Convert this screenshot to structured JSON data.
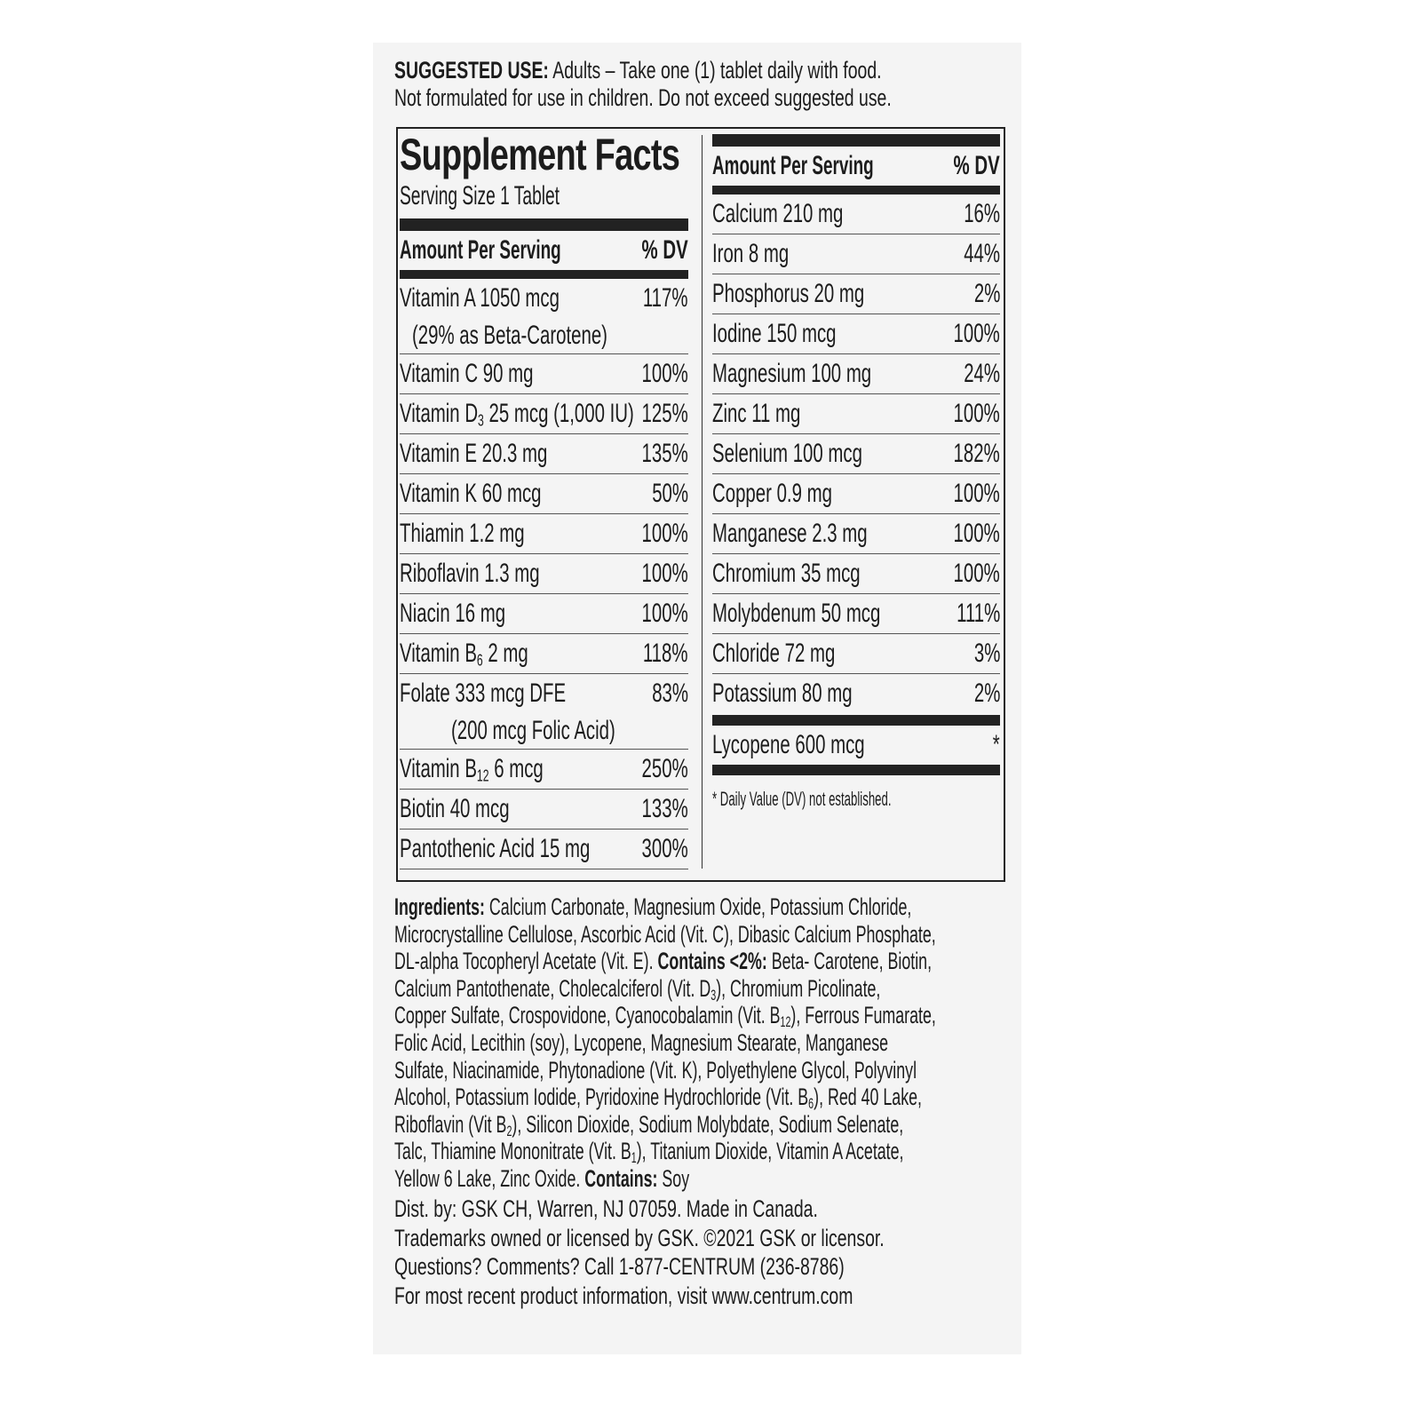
{
  "suggested_use": {
    "label": "SUGGESTED USE:",
    "line1": "Adults – Take one (1) tablet daily with food.",
    "line2": "Not formulated for use in children. Do not exceed suggested use."
  },
  "facts": {
    "title": "Supplement Facts",
    "serving_size": "Serving Size 1 Tablet",
    "header_amount": "Amount Per Serving",
    "header_dv": "% DV",
    "left_rows": [
      {
        "name": "Vitamin A 1050 mcg",
        "sub": "",
        "rest": "",
        "dv": "117%",
        "note": "(29% as Beta-Carotene)"
      },
      {
        "name": "Vitamin C 90 mg",
        "sub": "",
        "rest": "",
        "dv": "100%"
      },
      {
        "name": "Vitamin D",
        "sub": "3",
        "rest": " 25 mcg (1,000 IU)",
        "dv": "125%"
      },
      {
        "name": "Vitamin E 20.3 mg",
        "sub": "",
        "rest": "",
        "dv": "135%"
      },
      {
        "name": "Vitamin K 60 mcg",
        "sub": "",
        "rest": "",
        "dv": "50%"
      },
      {
        "name": "Thiamin 1.2 mg",
        "sub": "",
        "rest": "",
        "dv": "100%"
      },
      {
        "name": "Riboflavin 1.3 mg",
        "sub": "",
        "rest": "",
        "dv": "100%"
      },
      {
        "name": "Niacin 16 mg",
        "sub": "",
        "rest": "",
        "dv": "100%"
      },
      {
        "name": "Vitamin B",
        "sub": "6",
        "rest": " 2 mg",
        "dv": "118%"
      },
      {
        "name": "Folate 333 mcg DFE",
        "sub": "",
        "rest": "",
        "dv": "83%",
        "note": "(200 mcg Folic Acid)"
      },
      {
        "name": "Vitamin B",
        "sub": "12",
        "rest": " 6 mcg",
        "dv": "250%"
      },
      {
        "name": "Biotin 40 mcg",
        "sub": "",
        "rest": "",
        "dv": "133%"
      },
      {
        "name": "Pantothenic Acid 15 mg",
        "sub": "",
        "rest": "",
        "dv": "300%"
      }
    ],
    "right_rows": [
      {
        "name": "Calcium 210 mg",
        "dv": "16%"
      },
      {
        "name": "Iron 8 mg",
        "dv": "44%"
      },
      {
        "name": "Phosphorus 20 mg",
        "dv": "2%"
      },
      {
        "name": "Iodine 150 mcg",
        "dv": "100%"
      },
      {
        "name": "Magnesium 100 mg",
        "dv": "24%"
      },
      {
        "name": "Zinc 11 mg",
        "dv": "100%"
      },
      {
        "name": "Selenium 100 mcg",
        "dv": "182%"
      },
      {
        "name": "Copper 0.9 mg",
        "dv": "100%"
      },
      {
        "name": "Manganese 2.3 mg",
        "dv": "100%"
      },
      {
        "name": "Chromium 35 mcg",
        "dv": "100%"
      },
      {
        "name": "Molybdenum 50 mcg",
        "dv": "111%"
      },
      {
        "name": "Chloride 72 mg",
        "dv": "3%"
      },
      {
        "name": "Potassium 80 mg",
        "dv": "2%"
      }
    ],
    "other": {
      "name": "Lycopene 600 mcg",
      "dv": "*"
    },
    "footnote": "* Daily Value (DV) not established."
  },
  "ingredients": {
    "label": "Ingredients:",
    "l1": " Calcium Carbonate, Magnesium Oxide, Potassium Chloride,",
    "l2": "Microcrystalline Cellulose, Ascorbic Acid (Vit. C), Dibasic Calcium Phosphate,",
    "l3a": "DL-alpha Tocopheryl Acetate (Vit. E). ",
    "contains_label": "Contains <2%:",
    "l3b": " Beta- Carotene, Biotin,",
    "l4a": "Calcium Pantothenate, Cholecalciferol (Vit. D",
    "l4s": "3",
    "l4b": "), Chromium Picolinate,",
    "l5a": "Copper Sulfate, Crospovidone, Cyanocobalamin (Vit. B",
    "l5s": "12",
    "l5b": "), Ferrous Fumarate,",
    "l6": "Folic Acid, Lecithin (soy), Lycopene, Magnesium Stearate, Manganese",
    "l7": "Sulfate, Niacinamide, Phytonadione (Vit. K), Polyethylene Glycol, Polyvinyl",
    "l8a": "Alcohol, Potassium Iodide, Pyridoxine Hydrochloride (Vit. B",
    "l8s": "6",
    "l8b": "), Red 40 Lake,",
    "l9a": "Riboflavin (Vit B",
    "l9s": "2",
    "l9b": "), Silicon Dioxide, Sodium Molybdate, Sodium Selenate,",
    "l10a": "Talc, Thiamine Mononitrate (Vit. B",
    "l10s": "1",
    "l10b": "), Titanium Dioxide, Vitamin A Acetate,",
    "l11a": "Yellow 6 Lake, Zinc Oxide. ",
    "allergen_label": "Contains:",
    "l11b": " Soy"
  },
  "distributor": {
    "line1": "Dist. by: GSK CH, Warren, NJ 07059. Made in Canada.",
    "line2": "Trademarks owned or licensed by GSK. ©2021 GSK or licensor.",
    "line3": "Questions? Comments?  Call 1-877-CENTRUM (236-8786)",
    "line4": "For most recent product information, visit www.centrum.com"
  }
}
